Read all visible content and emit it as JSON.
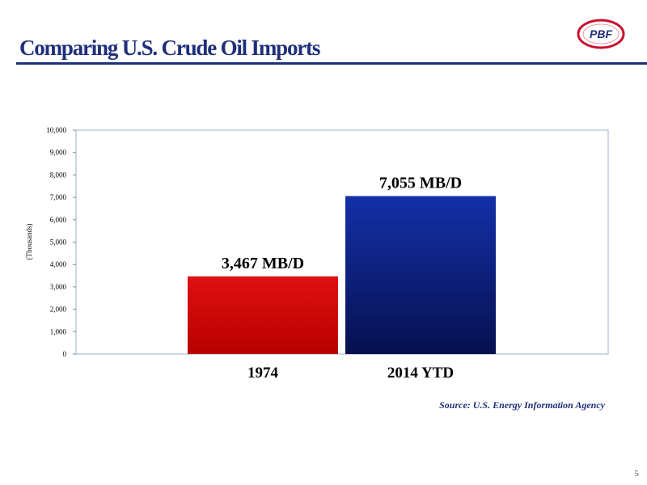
{
  "slide": {
    "title": "Comparing U.S. Crude Oil Imports",
    "source": "Source: U.S. Energy Information Agency",
    "page_number": "5"
  },
  "logo": {
    "text": "PBF",
    "colors": {
      "ring": "#c8102e",
      "text": "#1f2f7a"
    }
  },
  "chart_data": {
    "type": "bar",
    "categories": [
      "1974",
      "2014 YTD"
    ],
    "values": [
      3467,
      7055
    ],
    "data_labels": [
      "3,467 MB/D",
      "7,055 MB/D"
    ],
    "ylabel": "(Thousands)",
    "xlabel": "",
    "ylim": [
      0,
      10000
    ],
    "yticks": [
      0,
      1000,
      2000,
      3000,
      4000,
      5000,
      6000,
      7000,
      8000,
      9000,
      10000
    ],
    "ytick_labels": [
      "0",
      "1,000",
      "2,000",
      "3,000",
      "4,000",
      "5,000",
      "6,000",
      "7,000",
      "8,000",
      "9,000",
      "10,000"
    ],
    "bar_colors": [
      "#cc0000",
      "#0a1a7a"
    ],
    "grid": false,
    "legend": false
  }
}
